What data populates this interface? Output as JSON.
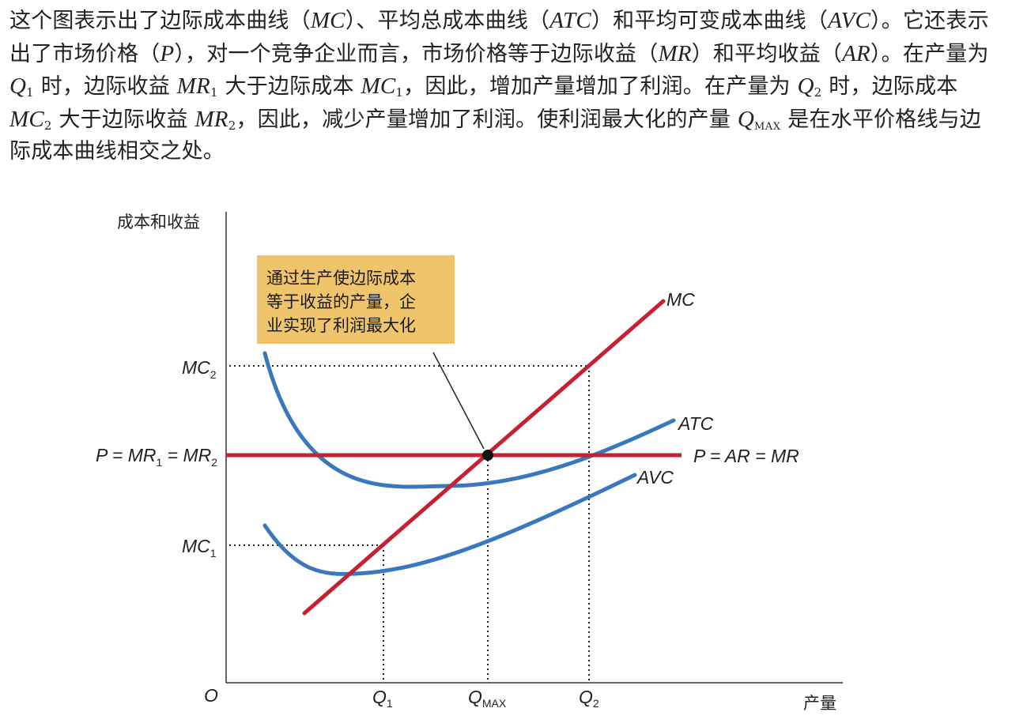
{
  "paragraph": {
    "s1a": "这个图表示出了边际成本曲线（",
    "mc": "MC",
    "s1b": "）、平均总成本曲线（",
    "atc": "ATC",
    "s1c": "）和平均可变成本曲线（",
    "avc": "AVC",
    "s1d": "）。它还表示出了市场价格（",
    "p": "P",
    "s1e": "），对一个竞争企业而言，市场价格等于边际收益（",
    "mr": "MR",
    "s1f": "）和平均收益（",
    "ar": "AR",
    "s1g": "）。",
    "s2a": "在产量为 ",
    "q": "Q",
    "sub1": "1",
    "s2b": " 时，边际收益 ",
    "mr1": "MR",
    "sub1b": "1",
    "s2c": " 大于边际成本 ",
    "mc1": "MC",
    "sub1c": "1",
    "s2d": "，因此，增加产量增加了利润。在产量为 ",
    "q2": "Q",
    "sub2": "2",
    "s2e": " 时，",
    "s3a": "边际成本 ",
    "mc2": "MC",
    "sub2b": "2",
    "s3b": " 大于边际收益 ",
    "mr2": "MR",
    "sub2c": "2",
    "s3c": "，因此，减少产量增加了利润。使利润最大化的产量 ",
    "qmax": "Q",
    "submax": "MAX",
    "s3d": " 是在水平价格线与边际成本曲线相交之处。"
  },
  "diagram": {
    "y_axis_label": "成本和收益",
    "x_axis_label": "产量",
    "origin": "O",
    "y_ticks": {
      "mc2_main": "MC",
      "mc2_sub": "2",
      "price_a": "P = MR",
      "price_sub1": "1",
      "price_b": " = MR",
      "price_sub2": "2",
      "mc1_main": "MC",
      "mc1_sub": "1"
    },
    "x_ticks": {
      "q1_main": "Q",
      "q1_sub": "1",
      "qmax_main": "Q",
      "qmax_sub": "MAX",
      "q2_main": "Q",
      "q2_sub": "2"
    },
    "curves": {
      "mc": "MC",
      "atc": "ATC",
      "avc": "AVC",
      "price_line": "P = AR = MR"
    },
    "note_lines": [
      "通过生产使边际成本",
      "等于收益的产量，企",
      "业实现了利润最大化"
    ],
    "colors": {
      "mc": "#C42132",
      "cost_curves": "#3A78BD",
      "note": "#F0C46A"
    }
  }
}
